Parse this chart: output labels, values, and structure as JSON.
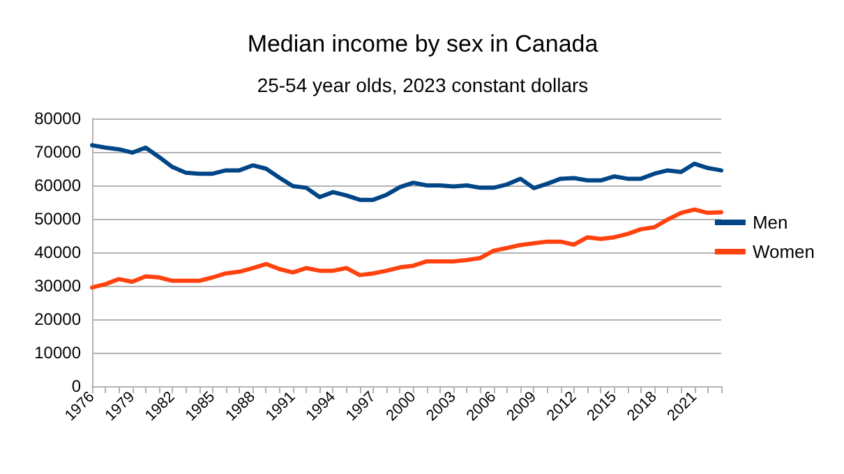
{
  "chart_data": {
    "type": "line",
    "title": "Median income by sex in Canada",
    "subtitle": "25-54 year olds, 2023 constant dollars",
    "categories": [
      "1976",
      null,
      null,
      "1979",
      null,
      null,
      "1982",
      null,
      null,
      "1985",
      null,
      null,
      "1988",
      null,
      null,
      "1991",
      null,
      null,
      "1994",
      null,
      null,
      "1997",
      null,
      null,
      "2000",
      null,
      null,
      "2003",
      null,
      null,
      "2006",
      null,
      null,
      "2009",
      null,
      null,
      "2012",
      null,
      null,
      "2015",
      null,
      null,
      "2018",
      null,
      null,
      "2021",
      null,
      null
    ],
    "series": [
      {
        "name": "Men",
        "color": "#004586",
        "values": [
          72000,
          71300,
          70800,
          69800,
          71300,
          68500,
          65500,
          63800,
          63500,
          63500,
          64500,
          64500,
          66000,
          65000,
          62300,
          59800,
          59300,
          56500,
          58000,
          57000,
          55700,
          55700,
          57200,
          59500,
          60800,
          60000,
          60000,
          59700,
          60000,
          59300,
          59300,
          60300,
          62000,
          59200,
          60500,
          62000,
          62200,
          61500,
          61500,
          62700,
          62000,
          62000,
          63500,
          64500,
          64000,
          66500,
          65200,
          64500
        ]
      },
      {
        "name": "Women",
        "color": "#ff420e",
        "values": [
          29500,
          30500,
          32000,
          31200,
          32800,
          32500,
          31500,
          31500,
          31500,
          32500,
          33700,
          34200,
          35300,
          36500,
          35000,
          34000,
          35300,
          34500,
          34500,
          35300,
          33200,
          33700,
          34500,
          35500,
          36000,
          37300,
          37300,
          37300,
          37700,
          38300,
          40500,
          41300,
          42200,
          42700,
          43200,
          43200,
          42300,
          44500,
          44000,
          44500,
          45500,
          46900,
          47500,
          49800,
          51800,
          52800,
          51800,
          52000
        ]
      }
    ],
    "ylim": [
      0,
      80000
    ],
    "yticks": [
      0,
      10000,
      20000,
      30000,
      40000,
      50000,
      60000,
      70000,
      80000
    ],
    "grid": "y",
    "legend": "right",
    "marker": "none",
    "line_style": "solid"
  }
}
